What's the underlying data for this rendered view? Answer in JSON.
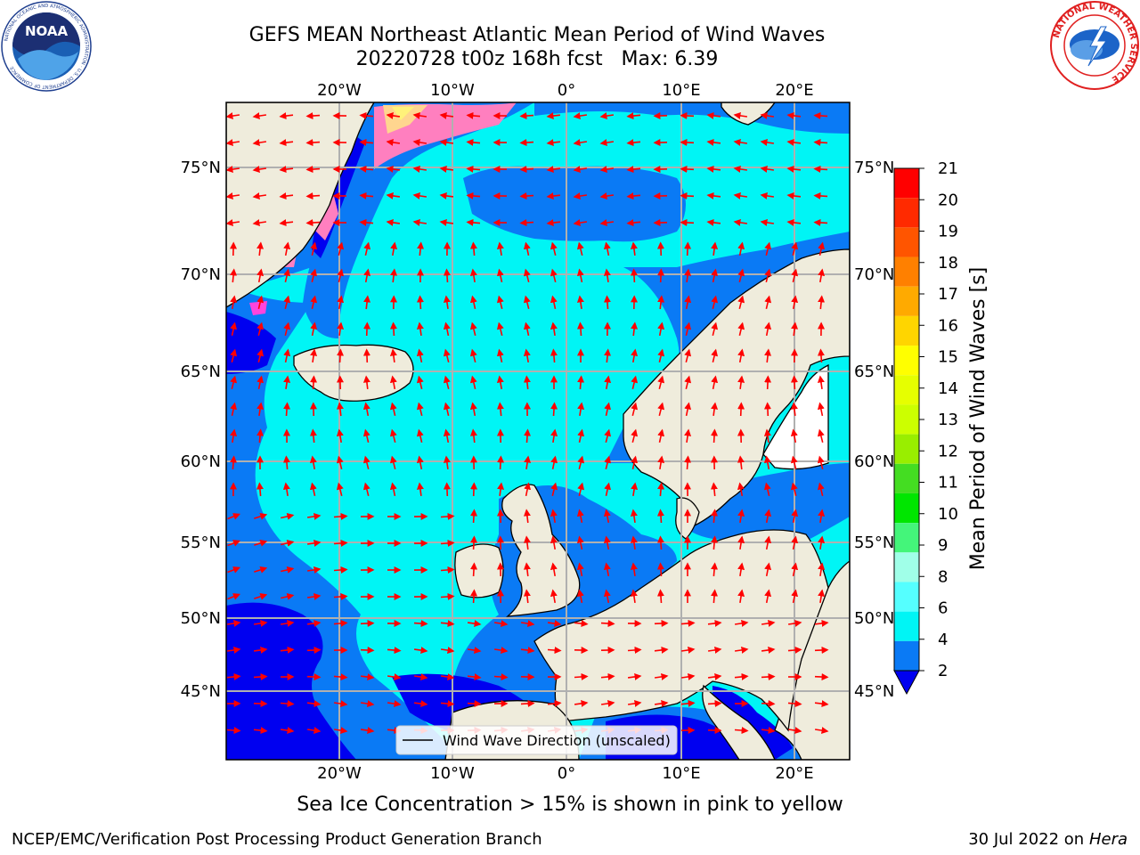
{
  "header": {
    "title_line1": "GEFS MEAN Northeast Atlantic Mean Period of Wind Waves",
    "title_line2": "20220728 t00z 168h fcst   Max: 6.39"
  },
  "logos": {
    "left": "NOAA",
    "left_ring": "NATIONAL OCEANIC AND ATMOSPHERIC ADMINISTRATION · U.S. DEPARTMENT OF COMMERCE",
    "right_ring": "NATIONAL WEATHER SERVICE"
  },
  "map": {
    "top_lon_labels": [
      "20°W",
      "10°W",
      "0°",
      "10°E",
      "20°E"
    ],
    "bottom_lon_labels": [
      "20°W",
      "10°W",
      "0°",
      "10°E",
      "20°E"
    ],
    "left_lat_labels": [
      "75°N",
      "70°N",
      "65°N",
      "60°N",
      "55°N",
      "50°N",
      "45°N"
    ],
    "right_lat_labels": [
      "75°N",
      "70°N",
      "65°N",
      "60°N",
      "55°N",
      "50°N",
      "45°N"
    ],
    "legend_label": "Wind Wave Direction (unscaled)",
    "colors": {
      "land": "#efecdc",
      "ocean_2_4": "#0a7af5",
      "ocean_4_6": "#00f5f5",
      "ocean_lt_2": "#0000f0",
      "arrow": "#ff0000",
      "grid": "#b0b0b0"
    }
  },
  "colorbar": {
    "label": "Mean Period of Wind Waves [s]",
    "ticks": [
      "21",
      "20",
      "19",
      "18",
      "17",
      "16",
      "15",
      "14",
      "13",
      "12",
      "11",
      "10",
      "9",
      "8",
      "6",
      "4",
      "2"
    ],
    "colors_top_to_bottom": [
      "#ff0000",
      "#ff2a00",
      "#ff5500",
      "#ff8000",
      "#ffaa00",
      "#ffd500",
      "#ffff00",
      "#e6ff00",
      "#ccff00",
      "#99ee00",
      "#44dd22",
      "#00e600",
      "#44f57a",
      "#a0ffe8",
      "#55ffff",
      "#00f5f5",
      "#0a7af5"
    ],
    "extend_color": "#0000f0"
  },
  "caption": "Sea Ice Concentration > 15% is shown in pink to yellow",
  "footer": {
    "left": "NCEP/EMC/Verification Post Processing Product Generation Branch",
    "right_date": "30 Jul 2022 on ",
    "right_machine": "Hera"
  }
}
